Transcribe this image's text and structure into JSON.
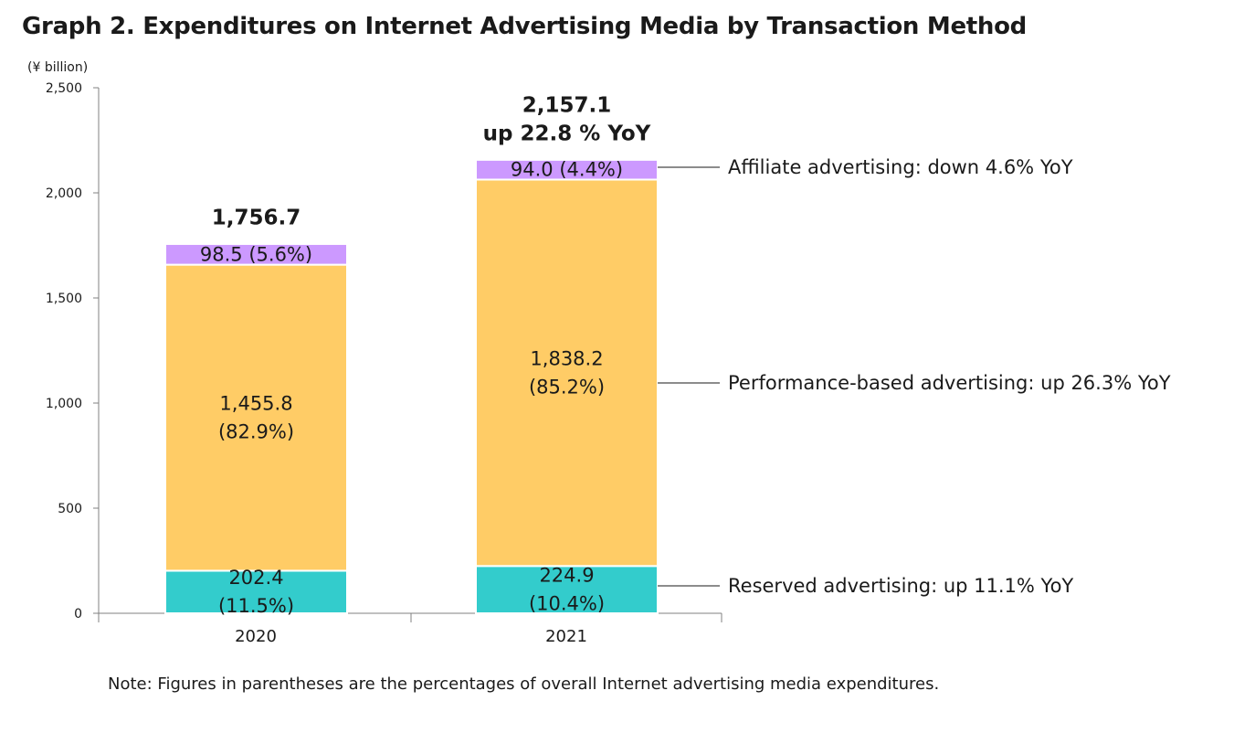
{
  "title": "Graph 2. Expenditures on Internet Advertising Media by Transaction Method",
  "note": "Note: Figures in parentheses are the percentages of overall Internet advertising media expenditures.",
  "colors": {
    "reserved": "#33cccc",
    "performance": "#ffcc66",
    "affiliate": "#cc99ff",
    "axis": "#808080"
  },
  "chart_data": {
    "type": "bar",
    "stacked": true,
    "unit_label": "(¥ billion)",
    "categories": [
      "2020",
      "2021"
    ],
    "ylim": [
      0,
      2500
    ],
    "yticks": [
      0,
      500,
      1000,
      1500,
      2000,
      2500
    ],
    "ytick_labels": [
      "0",
      "500",
      "1,000",
      "1,500",
      "2,000",
      "2,500"
    ],
    "series": [
      {
        "key": "reserved",
        "values": [
          202.4,
          224.9
        ],
        "labels": [
          [
            "202.4",
            "(11.5%)"
          ],
          [
            "224.9",
            "(10.4%)"
          ]
        ]
      },
      {
        "key": "performance",
        "values": [
          1455.8,
          1838.2
        ],
        "labels": [
          [
            "1,455.8",
            "(82.9%)"
          ],
          [
            "1,838.2",
            "(85.2%)"
          ]
        ]
      },
      {
        "key": "affiliate",
        "values": [
          98.5,
          94.0
        ],
        "labels": [
          [
            "98.5 (5.6%)"
          ],
          [
            "94.0 (4.4%)"
          ]
        ]
      }
    ],
    "totals": [
      {
        "lines": [
          "1,756.7"
        ]
      },
      {
        "lines": [
          "2,157.1",
          "up 22.8 % YoY"
        ]
      }
    ],
    "annotations": {
      "affiliate": "Affiliate advertising: down 4.6% YoY",
      "performance": "Performance-based advertising: up 26.3% YoY",
      "reserved": "Reserved advertising: up 11.1% YoY"
    }
  }
}
